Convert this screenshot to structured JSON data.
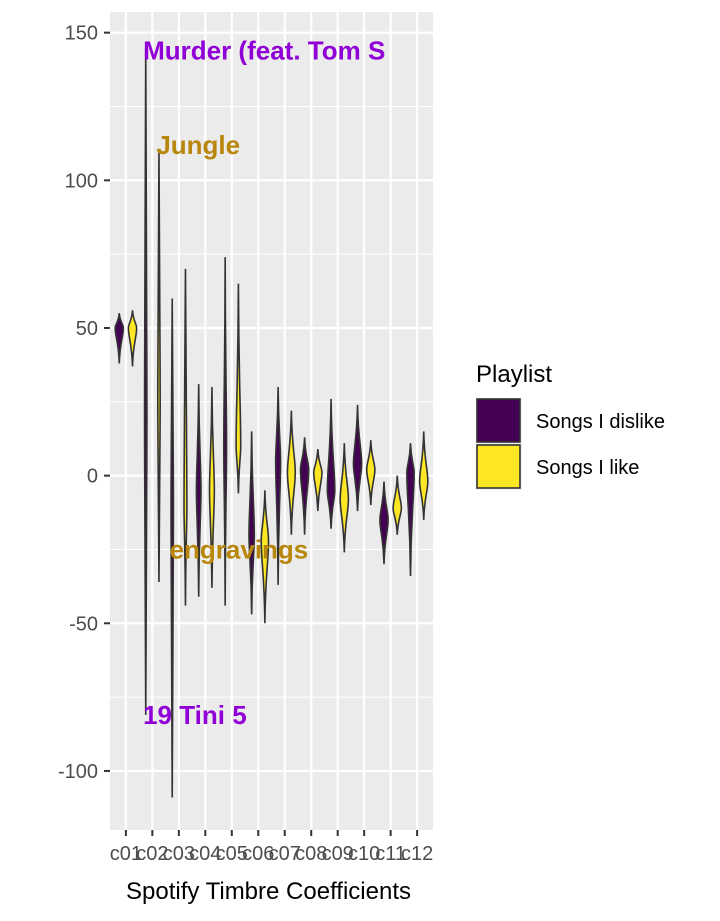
{
  "chart_data": {
    "type": "violin",
    "title": "",
    "xlabel": "Spotify Timbre Coefficients",
    "ylabel": "",
    "ylim": [
      -120,
      157
    ],
    "yticks": [
      -100,
      -50,
      0,
      50,
      100,
      150
    ],
    "categories": [
      "c01",
      "c02",
      "c03",
      "c04",
      "c05",
      "c06",
      "c07",
      "c08",
      "c09",
      "c10",
      "c11",
      "c12"
    ],
    "grid": true,
    "legend": {
      "title": "Playlist",
      "placement": "right",
      "entries": [
        {
          "label": "Songs I dislike",
          "color": "#440154"
        },
        {
          "label": "Songs I like",
          "color": "#FDE725"
        }
      ]
    },
    "series": [
      {
        "name": "Songs I dislike",
        "color": "#440154",
        "violins": [
          {
            "min": 38,
            "max": 55,
            "median": 50
          },
          {
            "min": -81,
            "max": 145,
            "median": 20
          },
          {
            "min": -109,
            "max": 60,
            "median": -10
          },
          {
            "min": -41,
            "max": 31,
            "median": -5
          },
          {
            "min": -44,
            "max": 74,
            "median": 10
          },
          {
            "min": -47,
            "max": 15,
            "median": -20
          },
          {
            "min": -37,
            "max": 30,
            "median": 5
          },
          {
            "min": -20,
            "max": 13,
            "median": 2
          },
          {
            "min": -18,
            "max": 26,
            "median": -5
          },
          {
            "min": -12,
            "max": 24,
            "median": 4
          },
          {
            "min": -30,
            "max": -2,
            "median": -15
          },
          {
            "min": -34,
            "max": 11,
            "median": 1
          }
        ]
      },
      {
        "name": "Songs I like",
        "color": "#FDE725",
        "violins": [
          {
            "min": 37,
            "max": 56,
            "median": 50
          },
          {
            "min": -36,
            "max": 110,
            "median": 25
          },
          {
            "min": -44,
            "max": 70,
            "median": -10
          },
          {
            "min": -38,
            "max": 30,
            "median": -5
          },
          {
            "min": -6,
            "max": 65,
            "median": 10
          },
          {
            "min": -50,
            "max": -5,
            "median": -22
          },
          {
            "min": -20,
            "max": 22,
            "median": 1
          },
          {
            "min": -12,
            "max": 9,
            "median": 1
          },
          {
            "min": -26,
            "max": 11,
            "median": -8
          },
          {
            "min": -10,
            "max": 12,
            "median": 2
          },
          {
            "min": -20,
            "max": 0,
            "median": -11
          },
          {
            "min": -15,
            "max": 15,
            "median": -2
          }
        ]
      }
    ],
    "annotations": [
      {
        "text": "Murder (feat. Tom S",
        "x": "c02",
        "y": 144,
        "color": "#9000D6"
      },
      {
        "text": "Jungle",
        "x": "c02",
        "y": 112,
        "color": "#B8860B"
      },
      {
        "text": "engravings",
        "x": "c03",
        "y": -25,
        "color": "#B8860B"
      },
      {
        "text": "19 Tini 5",
        "x": "c02",
        "y": -81,
        "color": "#9000D6"
      }
    ]
  }
}
